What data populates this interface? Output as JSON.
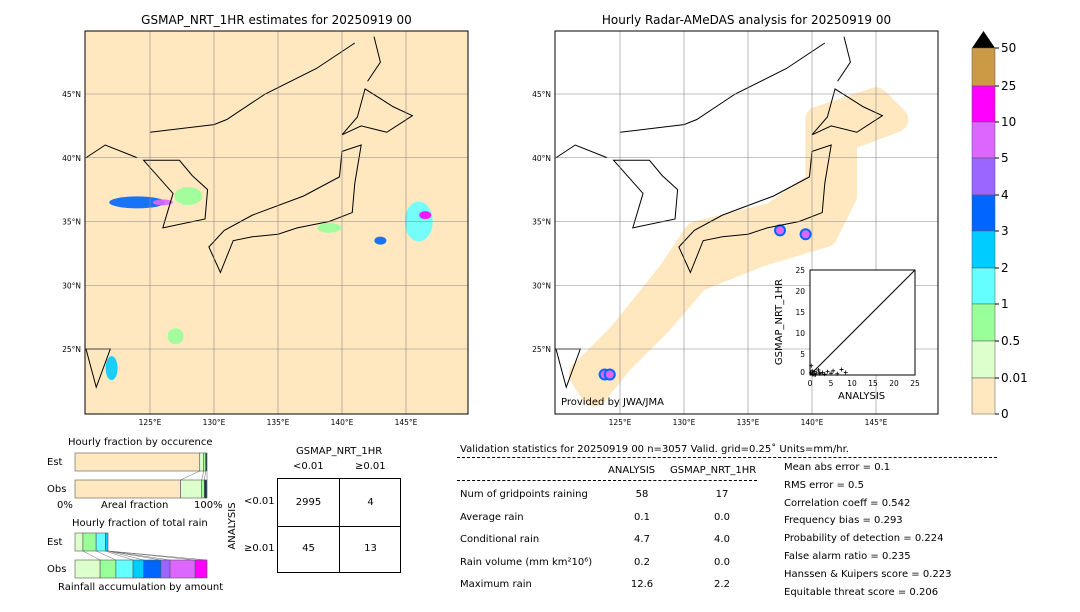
{
  "left_map": {
    "title": "GSMAP_NRT_1HR estimates for 20250919 00",
    "lon_ticks": [
      "125°E",
      "130°E",
      "135°E",
      "140°E",
      "145°E"
    ],
    "lat_ticks": [
      "45°N",
      "40°N",
      "35°N",
      "30°N",
      "25°N"
    ]
  },
  "right_map": {
    "title": "Hourly Radar-AMeDAS analysis for 20250919 00",
    "lon_ticks": [
      "125°E",
      "130°E",
      "135°E",
      "140°E",
      "145°E"
    ],
    "lat_ticks": [
      "45°N",
      "40°N",
      "35°N",
      "30°N",
      "25°N"
    ],
    "credit": "Provided by JWA/JMA"
  },
  "colorbar": {
    "labels": [
      "50",
      "25",
      "10",
      "5",
      "4",
      "3",
      "2",
      "1",
      "0.5",
      "0.01",
      "0"
    ],
    "colors": [
      "#cc9944",
      "#ff00ff",
      "#dd66ff",
      "#9966ff",
      "#0066ff",
      "#00ccff",
      "#66ffff",
      "#99ff99",
      "#ddffcc",
      "#ffe8c0"
    ]
  },
  "chart_data": [
    {
      "type": "scatter",
      "title": "",
      "xlabel": "ANALYSIS",
      "ylabel": "GSMAP_NRT_1HR",
      "xlim": [
        0,
        25
      ],
      "ylim": [
        0,
        25
      ],
      "xticks": [
        "0",
        "5",
        "10",
        "15",
        "20",
        "25"
      ],
      "yticks": [
        "0",
        "5",
        "10",
        "15",
        "20",
        "25"
      ],
      "x": [
        0.2,
        0.5,
        0.8,
        1.0,
        1.3,
        1.6,
        2.0,
        2.4,
        3.0,
        3.5,
        4.2,
        5.0,
        5.5,
        6.5,
        7.5,
        8.5,
        0.3,
        0.7,
        1.2,
        2.2
      ],
      "y": [
        0.5,
        1.0,
        0.2,
        0.8,
        0.1,
        0.5,
        1.2,
        0.3,
        0.6,
        0.2,
        0.8,
        0.4,
        1.0,
        0.3,
        1.3,
        0.6,
        2.2,
        0.1,
        0.0,
        0.5
      ]
    },
    {
      "type": "bar",
      "title": "Hourly fraction by occurence",
      "categories": [
        "Est",
        "Obs"
      ],
      "xlabel": "Areal fraction",
      "xticks": [
        "0%",
        "100%"
      ],
      "series": [
        {
          "values": [
            0.945,
            0.8
          ]
        },
        {
          "values": [
            0.03,
            0.16
          ]
        },
        {
          "values": [
            0.015,
            0.02
          ]
        },
        {
          "values": [
            0.01,
            0.02
          ]
        }
      ]
    },
    {
      "type": "bar",
      "title": "Hourly fraction of total rain",
      "categories": [
        "Est",
        "Obs"
      ],
      "xlabel": "Rainfall accumulation by amount",
      "series": [
        {
          "values": [
            0.06,
            0.19
          ]
        },
        {
          "values": [
            0.1,
            0.12
          ]
        },
        {
          "values": [
            0.07,
            0.13
          ]
        },
        {
          "values": [
            0.02,
            0.08
          ]
        },
        {
          "values": [
            0,
            0.13
          ]
        },
        {
          "values": [
            0,
            0.07
          ]
        },
        {
          "values": [
            0,
            0.19
          ]
        },
        {
          "values": [
            0,
            0.09
          ]
        }
      ]
    },
    {
      "type": "table",
      "title": "GSMAP_NRT_1HR",
      "col_headers": [
        "<0.01",
        "≥0.01"
      ],
      "row_label": "ANALYSIS",
      "row_headers": [
        "<0.01",
        "≥0.01"
      ],
      "cells": [
        [
          "2995",
          "4"
        ],
        [
          "45",
          "13"
        ]
      ]
    }
  ],
  "stats": {
    "header": "Validation statistics for 20250919 00  n=3057 Valid. grid=0.25˚ Units=mm/hr.",
    "col_analysis": "ANALYSIS",
    "col_gsmap": "GSMAP_NRT_1HR",
    "rows": [
      {
        "label": "Num of gridpoints raining",
        "a": "58",
        "g": "17"
      },
      {
        "label": "Average rain",
        "a": "0.1",
        "g": "0.0"
      },
      {
        "label": "Conditional rain",
        "a": "4.7",
        "g": "4.0"
      },
      {
        "label": "Rain volume (mm km²10⁶)",
        "a": "0.2",
        "g": "0.0"
      },
      {
        "label": "Maximum rain",
        "a": "12.6",
        "g": "2.2"
      }
    ],
    "scores": [
      "Mean abs error =    0.1",
      "RMS error =    0.5",
      "Correlation coeff =  0.542",
      "Frequency bias =  0.293",
      "Probability of detection =  0.224",
      "False alarm ratio =  0.235",
      "Hanssen & Kuipers score =  0.223",
      "Equitable threat score =  0.206"
    ]
  }
}
